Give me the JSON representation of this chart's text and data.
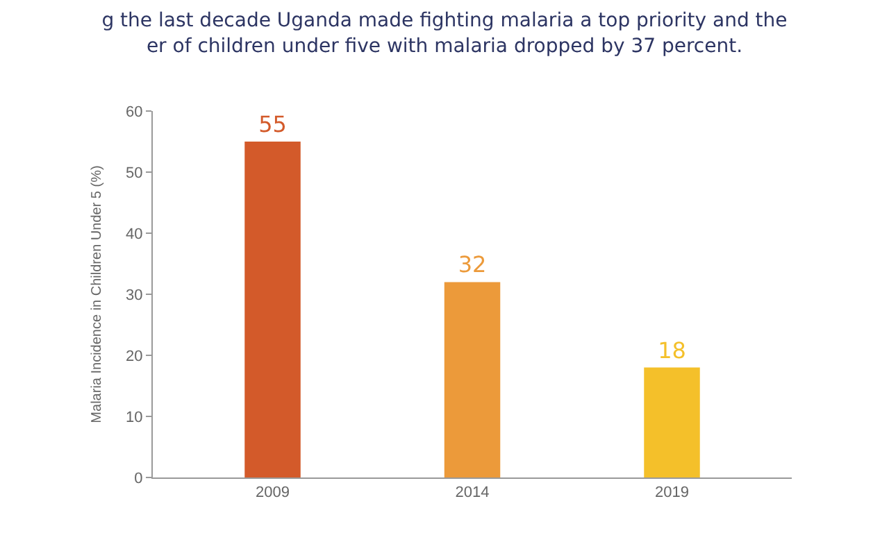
{
  "chart_data": {
    "type": "bar",
    "title": "g the last decade Uganda made fighting malaria a top priority and the\ner of children under five with malaria dropped by 37 percent.",
    "ylabel": "Malaria Incidence in Children Under 5 (%)",
    "categories": [
      "2009",
      "2014",
      "2019"
    ],
    "values": [
      55,
      32,
      18
    ],
    "colors": [
      "#d35a2a",
      "#ec9a3a",
      "#f4c02a"
    ],
    "ylim": [
      0,
      60
    ],
    "yticks": [
      0,
      10,
      20,
      30,
      40,
      50,
      60
    ],
    "data_labels": true
  }
}
